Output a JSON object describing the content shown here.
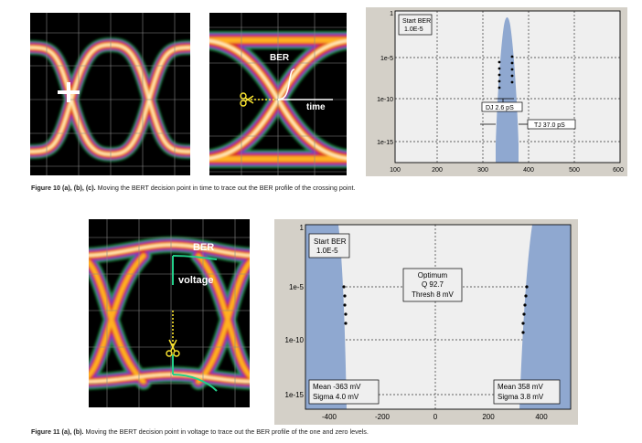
{
  "figure10": {
    "caption_bold": "Figure 10 (a), (b), (c).",
    "caption_text": " Moving the BERT decision point in time to trace out the BER profile of the crossing point.",
    "panel_b": {
      "ber_label": "BER",
      "time_label": "time"
    },
    "chart": {
      "start_ber_line1": "Start BER",
      "start_ber_line2": "1.0E-5",
      "dj_label": "DJ 2.6 pS",
      "tj_label": "TJ 37.0 pS",
      "y_ticks": [
        "1",
        "1e-5",
        "1e-10",
        "1e-15"
      ],
      "x_ticks": [
        "100",
        "200",
        "300",
        "400",
        "500",
        "600"
      ]
    }
  },
  "figure11": {
    "caption_bold": "Figure 11 (a), (b).",
    "caption_text": " Moving the BERT decision point in voltage to trace out the BER profile of the one and zero levels.",
    "panel_a": {
      "ber_label": "BER",
      "voltage_label": "voltage"
    },
    "chart": {
      "start_ber_line1": "Start BER",
      "start_ber_line2": "1.0E-5",
      "optimum_line1": "Optimum",
      "optimum_line2": "Q 92.7",
      "optimum_line3": "Thresh 8 mV",
      "left_stats_line1": "Mean -363 mV",
      "left_stats_line2": "Sigma 4.0 mV",
      "right_stats_line1": "Mean 358 mV",
      "right_stats_line2": "Sigma 3.8 mV",
      "y_ticks": [
        "1",
        "1e-5",
        "1e-10",
        "1e-15"
      ],
      "x_ticks": [
        "-400",
        "-200",
        "0",
        "200",
        "400"
      ]
    }
  },
  "colors": {
    "curve_fill": "#8fa8d0",
    "plot_bg": "#efefef",
    "frame": "#d4d0c8"
  }
}
